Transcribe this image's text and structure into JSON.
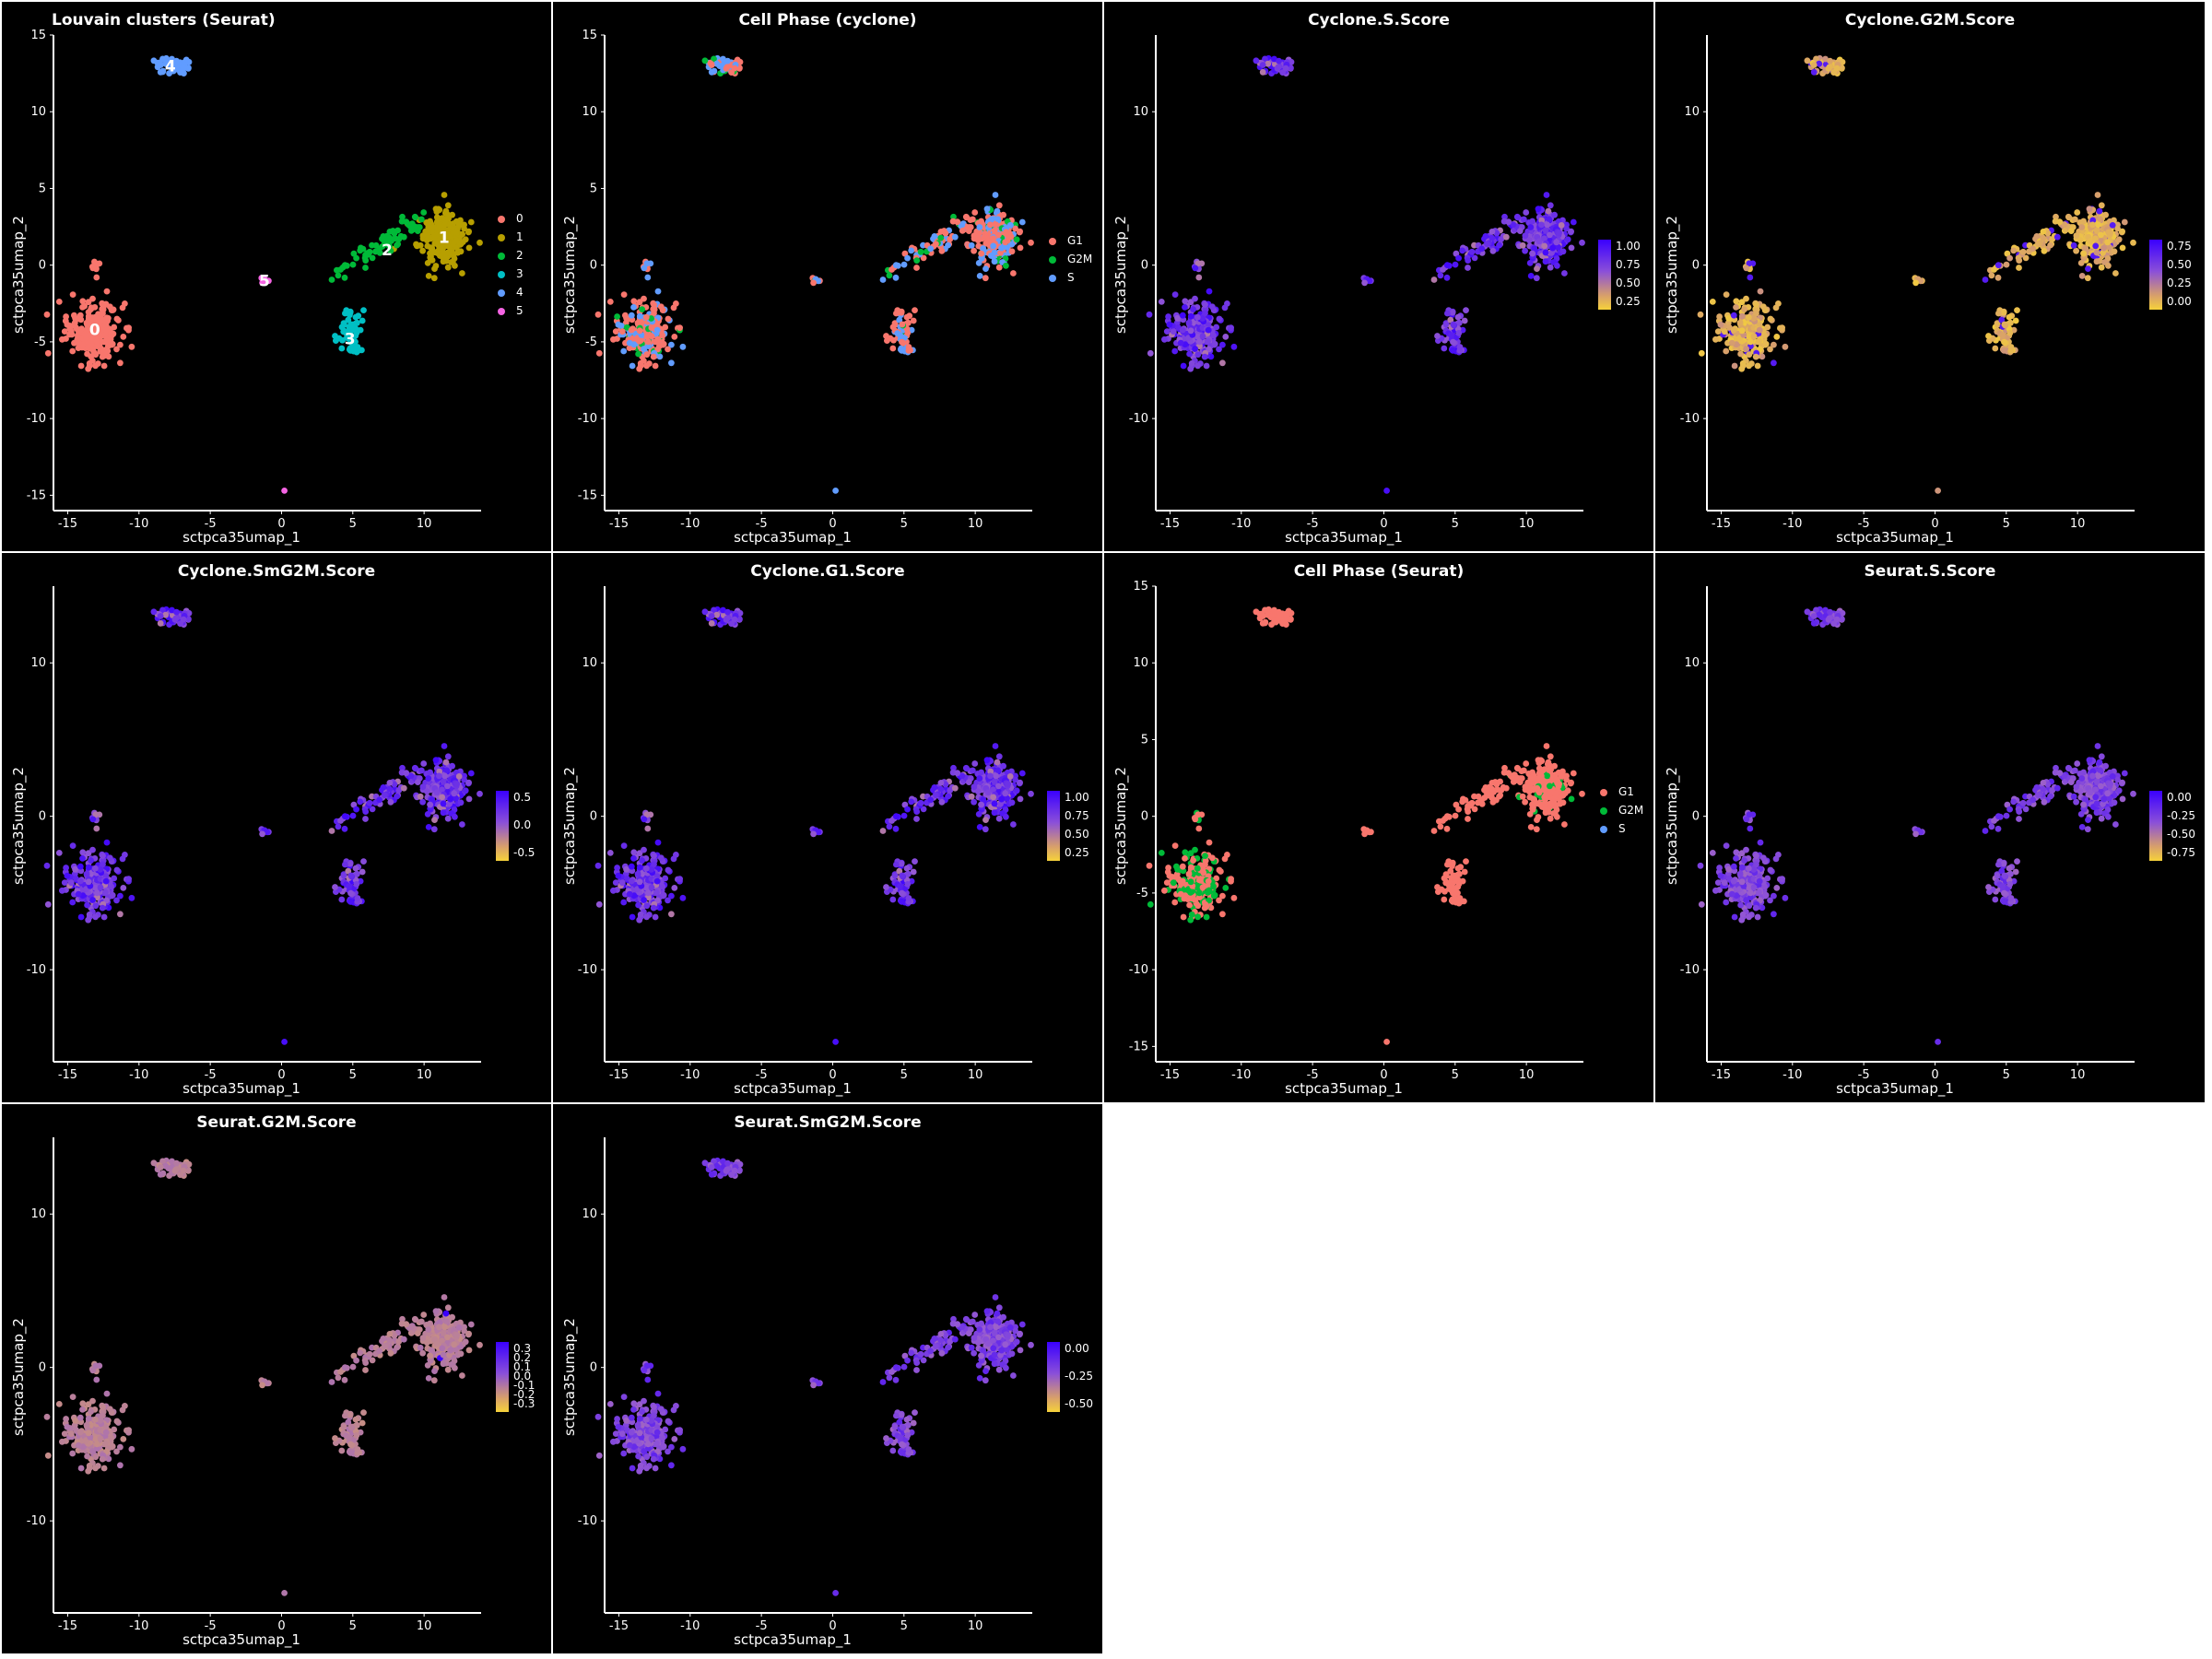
{
  "chart_data": [
    {
      "type": "scatter",
      "title": "Louvain clusters (Seurat)",
      "title_align": "left",
      "xlabel": "sctpca35umap_1",
      "ylabel": "sctpca35umap_2",
      "xlim": [
        -16,
        14
      ],
      "ylim": [
        -16,
        15
      ],
      "xticks": [
        -15,
        -10,
        -5,
        0,
        5,
        10
      ],
      "yticks": [
        -15,
        -10,
        -5,
        0,
        5,
        10,
        15
      ],
      "color_mode": "cluster",
      "legend": {
        "kind": "discrete",
        "entries": [
          {
            "label": "0",
            "color": "#f8766d"
          },
          {
            "label": "1",
            "color": "#b79f00"
          },
          {
            "label": "2",
            "color": "#00ba38"
          },
          {
            "label": "3",
            "color": "#00bfc4"
          },
          {
            "label": "4",
            "color": "#619cff"
          },
          {
            "label": "5",
            "color": "#f564e3"
          }
        ]
      },
      "cluster_labels": [
        {
          "text": "0",
          "x": -13.1,
          "y": -4.2
        },
        {
          "text": "1",
          "x": 11.4,
          "y": 1.8
        },
        {
          "text": "2",
          "x": 7.4,
          "y": 1.0
        },
        {
          "text": "3",
          "x": 4.8,
          "y": -4.8
        },
        {
          "text": "4",
          "x": -7.8,
          "y": 13.0
        },
        {
          "text": "5",
          "x": -1.2,
          "y": -1.0
        }
      ]
    },
    {
      "type": "scatter",
      "title": "Cell Phase (cyclone)",
      "title_align": "center",
      "xlabel": "sctpca35umap_1",
      "ylabel": "sctpca35umap_2",
      "xlim": [
        -16,
        14
      ],
      "ylim": [
        -16,
        15
      ],
      "xticks": [
        -15,
        -10,
        -5,
        0,
        5,
        10
      ],
      "yticks": [
        -15,
        -10,
        -5,
        0,
        5,
        10,
        15
      ],
      "color_mode": "phase_cyclone",
      "legend": {
        "kind": "discrete",
        "entries": [
          {
            "label": "G1",
            "color": "#f8766d"
          },
          {
            "label": "G2M",
            "color": "#00ba38"
          },
          {
            "label": "S",
            "color": "#619cff"
          }
        ]
      }
    },
    {
      "type": "scatter",
      "title": "Cyclone.S.Score",
      "title_align": "center",
      "xlabel": "sctpca35umap_1",
      "ylabel": "sctpca35umap_2",
      "xlim": [
        -16,
        14
      ],
      "ylim": [
        -16,
        15
      ],
      "xticks": [
        -15,
        -10,
        -5,
        0,
        5,
        10
      ],
      "yticks": [
        -10,
        0,
        10
      ],
      "color_mode": "high",
      "legend": {
        "kind": "continuous",
        "ticks": [
          "1.00",
          "0.75",
          "0.50",
          "0.25"
        ]
      }
    },
    {
      "type": "scatter",
      "title": "Cyclone.G2M.Score",
      "title_align": "center",
      "xlabel": "sctpca35umap_1",
      "ylabel": "sctpca35umap_2",
      "xlim": [
        -16,
        14
      ],
      "ylim": [
        -16,
        15
      ],
      "xticks": [
        -15,
        -10,
        -5,
        0,
        5,
        10
      ],
      "yticks": [
        -10,
        0,
        10
      ],
      "color_mode": "low",
      "legend": {
        "kind": "continuous",
        "ticks": [
          "0.75",
          "0.50",
          "0.25",
          "0.00"
        ]
      }
    },
    {
      "type": "scatter",
      "title": "Cyclone.SmG2M.Score",
      "title_align": "center",
      "xlabel": "sctpca35umap_1",
      "ylabel": "sctpca35umap_2",
      "xlim": [
        -16,
        14
      ],
      "ylim": [
        -16,
        15
      ],
      "xticks": [
        -15,
        -10,
        -5,
        0,
        5,
        10
      ],
      "yticks": [
        -10,
        0,
        10
      ],
      "color_mode": "high",
      "legend": {
        "kind": "continuous",
        "ticks": [
          "0.5",
          "0.0",
          "-0.5"
        ]
      }
    },
    {
      "type": "scatter",
      "title": "Cyclone.G1.Score",
      "title_align": "center",
      "xlabel": "sctpca35umap_1",
      "ylabel": "sctpca35umap_2",
      "xlim": [
        -16,
        14
      ],
      "ylim": [
        -16,
        15
      ],
      "xticks": [
        -15,
        -10,
        -5,
        0,
        5,
        10
      ],
      "yticks": [
        -10,
        0,
        10
      ],
      "color_mode": "high",
      "legend": {
        "kind": "continuous",
        "ticks": [
          "1.00",
          "0.75",
          "0.50",
          "0.25"
        ]
      }
    },
    {
      "type": "scatter",
      "title": "Cell Phase (Seurat)",
      "title_align": "center",
      "xlabel": "sctpca35umap_1",
      "ylabel": "sctpca35umap_2",
      "xlim": [
        -16,
        14
      ],
      "ylim": [
        -16,
        15
      ],
      "xticks": [
        -15,
        -10,
        -5,
        0,
        5,
        10
      ],
      "yticks": [
        -15,
        -10,
        -5,
        0,
        5,
        10,
        15
      ],
      "color_mode": "phase_seurat",
      "legend": {
        "kind": "discrete",
        "entries": [
          {
            "label": "G1",
            "color": "#f8766d"
          },
          {
            "label": "G2M",
            "color": "#00ba38"
          },
          {
            "label": "S",
            "color": "#619cff"
          }
        ]
      }
    },
    {
      "type": "scatter",
      "title": "Seurat.S.Score",
      "title_align": "center",
      "xlabel": "sctpca35umap_1",
      "ylabel": "sctpca35umap_2",
      "xlim": [
        -16,
        14
      ],
      "ylim": [
        -16,
        15
      ],
      "xticks": [
        -15,
        -10,
        -5,
        0,
        5,
        10
      ],
      "yticks": [
        -10,
        0,
        10
      ],
      "color_mode": "purple",
      "legend": {
        "kind": "continuous",
        "ticks": [
          "0.00",
          "-0.25",
          "-0.50",
          "-0.75"
        ]
      }
    },
    {
      "type": "scatter",
      "title": "Seurat.G2M.Score",
      "title_align": "center",
      "xlabel": "sctpca35umap_1",
      "ylabel": "sctpca35umap_2",
      "xlim": [
        -16,
        14
      ],
      "ylim": [
        -16,
        15
      ],
      "xticks": [
        -15,
        -10,
        -5,
        0,
        5,
        10
      ],
      "yticks": [
        -10,
        0,
        10
      ],
      "color_mode": "pink",
      "legend": {
        "kind": "continuous",
        "ticks": [
          "0.3",
          "0.2",
          "0.1",
          "0.0",
          "-0.1",
          "-0.2",
          "-0.3"
        ]
      }
    },
    {
      "type": "scatter",
      "title": "Seurat.SmG2M.Score",
      "title_align": "center",
      "xlabel": "sctpca35umap_1",
      "ylabel": "sctpca35umap_2",
      "xlim": [
        -16,
        14
      ],
      "ylim": [
        -16,
        15
      ],
      "xticks": [
        -15,
        -10,
        -5,
        0,
        5,
        10
      ],
      "yticks": [
        -10,
        0,
        10
      ],
      "color_mode": "purple",
      "legend": {
        "kind": "continuous",
        "ticks": [
          "0.00",
          "-0.25",
          "-0.50"
        ]
      }
    }
  ],
  "umap_clusters": [
    {
      "id": "0",
      "cx": -13.2,
      "cy": -4.3,
      "rx": 1.7,
      "ry": 1.7,
      "n": 240
    },
    {
      "id": "1",
      "cx": 11.2,
      "cy": 1.8,
      "rx": 1.5,
      "ry": 1.6,
      "n": 240
    },
    {
      "id": "2",
      "cx": 6.5,
      "cy": 1.2,
      "rx": 3.0,
      "ry": 1.2,
      "n": 70
    },
    {
      "id": "3",
      "cx": 4.8,
      "cy": -4.0,
      "rx": 0.8,
      "ry": 1.4,
      "n": 60
    },
    {
      "id": "4",
      "cx": -7.6,
      "cy": 13.0,
      "rx": 1.1,
      "ry": 0.5,
      "n": 50
    },
    {
      "id": "5",
      "cx": -1.2,
      "cy": -1.0,
      "rx": 0.4,
      "ry": 0.2,
      "n": 8
    }
  ],
  "umap_outlier": {
    "x": 0.2,
    "y": -14.7
  }
}
